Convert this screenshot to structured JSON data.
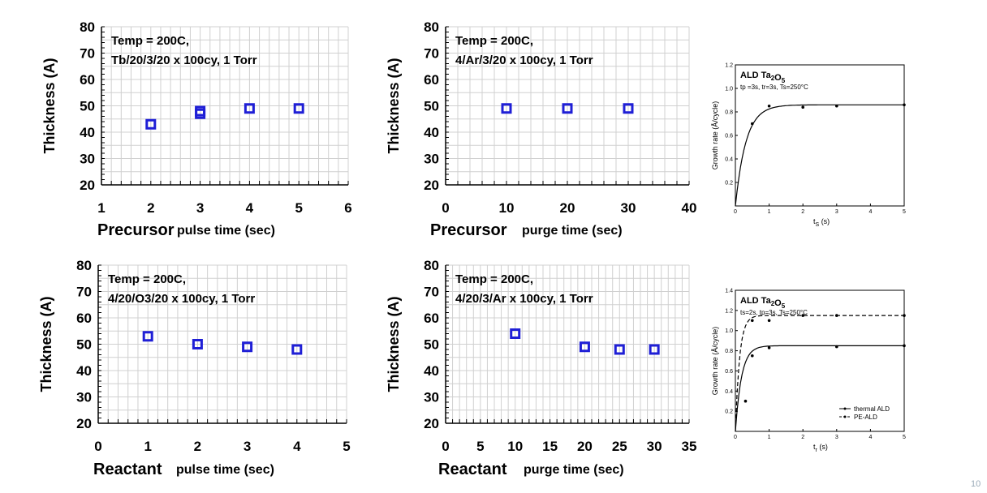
{
  "page_number": "10",
  "colors": {
    "marker": "#1f1fd6",
    "grid": "#d0d0d0"
  },
  "chart_data": [
    {
      "type": "scatter",
      "ylabel": "Thickness (A)",
      "xlabel_big": "Precursor",
      "xlabel_small": "pulse time (sec)",
      "annotation": [
        "Temp = 200C,",
        "Tb/20/3/20 x 100cy, 1 Torr"
      ],
      "xlim": [
        1,
        6
      ],
      "ylim": [
        20,
        80
      ],
      "xticks": [
        1,
        2,
        3,
        4,
        5,
        6
      ],
      "yticks": [
        20,
        30,
        40,
        50,
        60,
        70,
        80
      ],
      "x": [
        2,
        3,
        3,
        4,
        5
      ],
      "y": [
        43,
        47,
        48,
        49,
        49
      ]
    },
    {
      "type": "scatter",
      "ylabel": "Thickness (A)",
      "xlabel_big": "Precursor",
      "xlabel_small": "purge time (sec)",
      "annotation": [
        "Temp = 200C,",
        "4/Ar/3/20 x 100cy, 1 Torr"
      ],
      "xlim": [
        0,
        40
      ],
      "ylim": [
        20,
        80
      ],
      "xticks": [
        0,
        10,
        20,
        30,
        40
      ],
      "yticks": [
        20,
        30,
        40,
        50,
        60,
        70,
        80
      ],
      "x": [
        10,
        20,
        30
      ],
      "y": [
        49,
        49,
        49
      ]
    },
    {
      "type": "scatter",
      "ylabel": "Thickness (A)",
      "xlabel_big": "Reactant",
      "xlabel_small": "pulse time (sec)",
      "annotation": [
        "Temp = 200C,",
        "4/20/O3/20 x 100cy, 1 Torr"
      ],
      "xlim": [
        0,
        5
      ],
      "ylim": [
        20,
        80
      ],
      "xticks": [
        0,
        1,
        2,
        3,
        4,
        5
      ],
      "yticks": [
        20,
        30,
        40,
        50,
        60,
        70,
        80
      ],
      "x": [
        1,
        2,
        3,
        4
      ],
      "y": [
        53,
        50,
        49,
        48
      ]
    },
    {
      "type": "scatter",
      "ylabel": "Thickness (A)",
      "xlabel_big": "Reactant",
      "xlabel_small": "purge time (sec)",
      "annotation": [
        "Temp = 200C,",
        "4/20/3/Ar x 100cy, 1 Torr"
      ],
      "xlim": [
        0,
        35
      ],
      "ylim": [
        20,
        80
      ],
      "xticks": [
        0,
        5,
        10,
        15,
        20,
        25,
        30,
        35
      ],
      "yticks": [
        20,
        30,
        40,
        50,
        60,
        70,
        80
      ],
      "x": [
        10,
        20,
        25,
        30
      ],
      "y": [
        54,
        49,
        48,
        48
      ]
    },
    {
      "type": "line",
      "title": "ALD Ta2O5",
      "conditions": "tp =3s, tr=3s, Ts=250°C",
      "ylabel": "Growth rate (Å/cycle)",
      "xlabel": "tS (s)",
      "xlim": [
        0,
        5
      ],
      "ylim": [
        0,
        1.2
      ],
      "xticks": [
        0,
        1,
        2,
        3,
        4,
        5
      ],
      "yticks": [
        0,
        0.2,
        0.4,
        0.6,
        0.8,
        1.0,
        1.2
      ],
      "ytick_labels": [
        "0",
        "0.2",
        "0.4",
        "0.6",
        "0.8",
        "1.0",
        "1.2"
      ],
      "series": [
        {
          "x": [
            0.5,
            1,
            2,
            3,
            5
          ],
          "y": [
            0.7,
            0.85,
            0.84,
            0.85,
            0.86
          ]
        }
      ]
    },
    {
      "type": "line",
      "title": "ALD Ta2O5",
      "conditions": "ts=2s, tp=3s, Ts=250°C",
      "ylabel": "Growth rate (Å/cycle)",
      "xlabel": "tr (s)",
      "xlim": [
        0,
        5
      ],
      "ylim": [
        0,
        1.4
      ],
      "xticks": [
        0,
        1,
        2,
        3,
        4,
        5
      ],
      "yticks": [
        0,
        0.2,
        0.4,
        0.6,
        0.8,
        1.0,
        1.2,
        1.4
      ],
      "ytick_labels": [
        "0",
        "0.2",
        "0.4",
        "0.6",
        "0.8",
        "1.0",
        "1.2",
        "1.4"
      ],
      "series": [
        {
          "name": "thermal ALD",
          "style": "solid",
          "x": [
            0.3,
            0.5,
            1,
            3,
            5
          ],
          "y": [
            0.3,
            0.75,
            0.83,
            0.84,
            0.85
          ]
        },
        {
          "name": "PE-ALD",
          "style": "dashed",
          "x": [
            0.5,
            1,
            2,
            3,
            5
          ],
          "y": [
            1.1,
            1.1,
            1.15,
            1.15,
            1.15
          ]
        }
      ]
    }
  ]
}
